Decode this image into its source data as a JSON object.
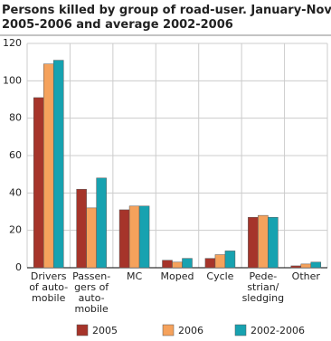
{
  "chart_data": {
    "type": "bar",
    "title": [
      "Persons killed by group of road-user. January-November",
      "2005-2006 and average 2002-2006"
    ],
    "categories": [
      "Drivers\nof auto-\nmobile",
      "Passen-\ngers of\nauto-\nmobile",
      "MC",
      "Moped",
      "Cycle",
      "Pede-\nstrian/\nsledging",
      "Other"
    ],
    "series": [
      {
        "name": "2005",
        "color": "#a6342a",
        "values": [
          91,
          42,
          31,
          4,
          5,
          27,
          1
        ]
      },
      {
        "name": "2006",
        "color": "#f5a25c",
        "values": [
          109,
          32,
          33,
          3,
          7,
          28,
          2
        ]
      },
      {
        "name": "2002-2006",
        "color": "#17a2b0",
        "values": [
          111,
          48,
          33,
          5,
          9,
          27,
          3
        ]
      }
    ],
    "ylim": [
      0,
      120
    ],
    "yticks": [
      0,
      20,
      40,
      60,
      80,
      100,
      120
    ],
    "grid": true,
    "legend": "bottom"
  }
}
